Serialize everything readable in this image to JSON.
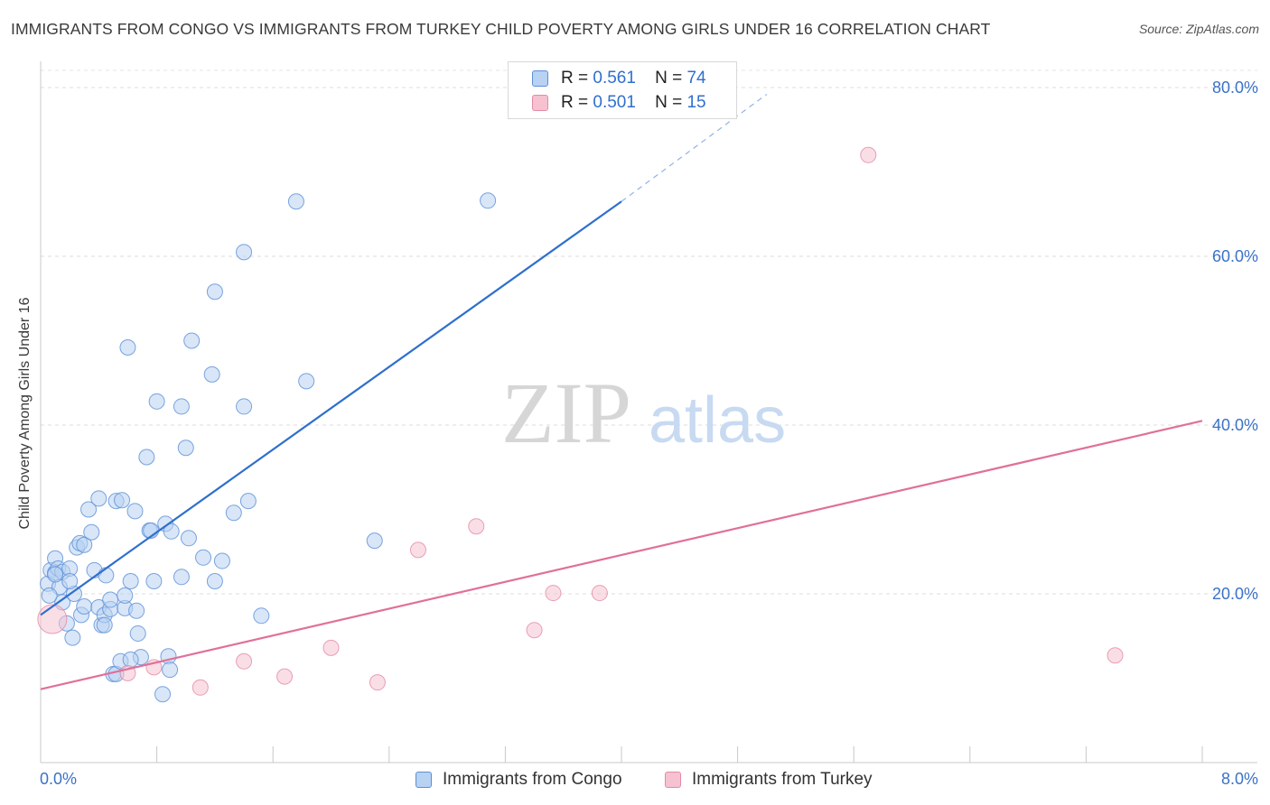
{
  "title": "IMMIGRANTS FROM CONGO VS IMMIGRANTS FROM TURKEY CHILD POVERTY AMONG GIRLS UNDER 16 CORRELATION CHART",
  "source": "Source: ZipAtlas.com",
  "colors": {
    "congo": "#5b8fd6",
    "congo_fill": "#b8d2f2",
    "turkey": "#e48aa6",
    "turkey_fill": "#f6c2d1",
    "congo_line": "#2f6fce",
    "turkey_line": "#e07099"
  },
  "legend": {
    "congo": {
      "r_label": "R =",
      "r_value": "0.561",
      "n_label": "N =",
      "n_value": "74"
    },
    "turkey": {
      "r_label": "R =",
      "r_value": "0.501",
      "n_label": "N =",
      "n_value": "15"
    }
  },
  "watermark": {
    "zip": "ZIP",
    "atlas": "atlas"
  },
  "chart_data": {
    "type": "scatter",
    "title": "IMMIGRANTS FROM CONGO VS IMMIGRANTS FROM TURKEY CHILD POVERTY AMONG GIRLS UNDER 16 CORRELATION CHART",
    "xlabel": "",
    "ylabel": "Child Poverty Among Girls Under 16",
    "xlim": [
      0,
      8
    ],
    "ylim": [
      0,
      80
    ],
    "x_tick_labels": [
      "0.0%",
      "8.0%"
    ],
    "y_ticks": [
      20,
      40,
      60,
      80
    ],
    "y_tick_labels": [
      "20.0%",
      "40.0%",
      "60.0%",
      "80.0%"
    ],
    "grid": true,
    "legend_position": "bottom",
    "series": [
      {
        "name": "Immigrants from Congo",
        "points": [
          [
            0.05,
            21.2
          ],
          [
            0.07,
            22.8
          ],
          [
            0.1,
            22.5
          ],
          [
            0.1,
            24.2
          ],
          [
            0.12,
            23
          ],
          [
            0.13,
            20.8
          ],
          [
            0.15,
            22.6
          ],
          [
            0.15,
            19
          ],
          [
            0.18,
            16.5
          ],
          [
            0.2,
            23
          ],
          [
            0.22,
            14.8
          ],
          [
            0.23,
            20
          ],
          [
            0.25,
            25.5
          ],
          [
            0.27,
            26
          ],
          [
            0.28,
            17.5
          ],
          [
            0.3,
            18.5
          ],
          [
            0.3,
            25.8
          ],
          [
            0.33,
            30
          ],
          [
            0.35,
            27.3
          ],
          [
            0.37,
            22.8
          ],
          [
            0.4,
            18.4
          ],
          [
            0.4,
            31.3
          ],
          [
            0.42,
            16.3
          ],
          [
            0.44,
            17.5
          ],
          [
            0.45,
            22.2
          ],
          [
            0.48,
            18.2
          ],
          [
            0.48,
            19.3
          ],
          [
            0.5,
            10.5
          ],
          [
            0.52,
            10.5
          ],
          [
            0.52,
            31
          ],
          [
            0.55,
            12
          ],
          [
            0.56,
            31.1
          ],
          [
            0.58,
            18.3
          ],
          [
            0.58,
            19.8
          ],
          [
            0.6,
            49.2
          ],
          [
            0.62,
            21.5
          ],
          [
            0.65,
            29.8
          ],
          [
            0.66,
            18
          ],
          [
            0.67,
            15.3
          ],
          [
            0.69,
            12.5
          ],
          [
            0.73,
            36.2
          ],
          [
            0.75,
            27.5
          ],
          [
            0.76,
            27.5
          ],
          [
            0.78,
            21.5
          ],
          [
            0.8,
            42.8
          ],
          [
            0.84,
            8.1
          ],
          [
            0.86,
            28.3
          ],
          [
            0.88,
            12.6
          ],
          [
            0.89,
            11
          ],
          [
            0.9,
            27.4
          ],
          [
            0.97,
            42.2
          ],
          [
            0.97,
            22
          ],
          [
            1.0,
            37.3
          ],
          [
            1.02,
            26.6
          ],
          [
            1.04,
            50
          ],
          [
            1.12,
            24.3
          ],
          [
            1.18,
            46
          ],
          [
            1.2,
            21.5
          ],
          [
            1.2,
            55.8
          ],
          [
            1.25,
            23.9
          ],
          [
            1.33,
            29.6
          ],
          [
            1.4,
            60.5
          ],
          [
            1.4,
            42.2
          ],
          [
            1.43,
            31
          ],
          [
            1.52,
            17.4
          ],
          [
            1.76,
            66.5
          ],
          [
            1.83,
            45.2
          ],
          [
            2.3,
            26.3
          ],
          [
            3.08,
            66.6
          ],
          [
            0.44,
            16.3
          ],
          [
            0.2,
            21.5
          ],
          [
            0.62,
            12.2
          ],
          [
            0.1,
            22.3
          ],
          [
            0.06,
            19.8
          ]
        ]
      },
      {
        "name": "Immigrants from Turkey",
        "points": [
          [
            0.08,
            17
          ],
          [
            0.6,
            10.6
          ],
          [
            0.78,
            11.3
          ],
          [
            1.1,
            8.9
          ],
          [
            1.4,
            12
          ],
          [
            1.68,
            10.2
          ],
          [
            2.0,
            13.6
          ],
          [
            2.32,
            9.5
          ],
          [
            2.6,
            25.2
          ],
          [
            3.0,
            28
          ],
          [
            3.4,
            15.7
          ],
          [
            3.53,
            20.1
          ],
          [
            3.85,
            20.1
          ],
          [
            5.7,
            72
          ],
          [
            7.4,
            12.7
          ]
        ]
      }
    ],
    "trend_lines": [
      {
        "name": "Immigrants from Congo",
        "x_start": 0,
        "y_start": 17.5,
        "x_end": 4.0,
        "y_end": 66.5,
        "dashed_to_x": 5.0,
        "dashed_to_y": 79.2
      },
      {
        "name": "Immigrants from Turkey",
        "x_start": 0,
        "y_start": 8.7,
        "x_end": 8.0,
        "y_end": 40.5
      }
    ]
  },
  "bottom_legend": {
    "congo": "Immigrants from Congo",
    "turkey": "Immigrants from Turkey"
  }
}
